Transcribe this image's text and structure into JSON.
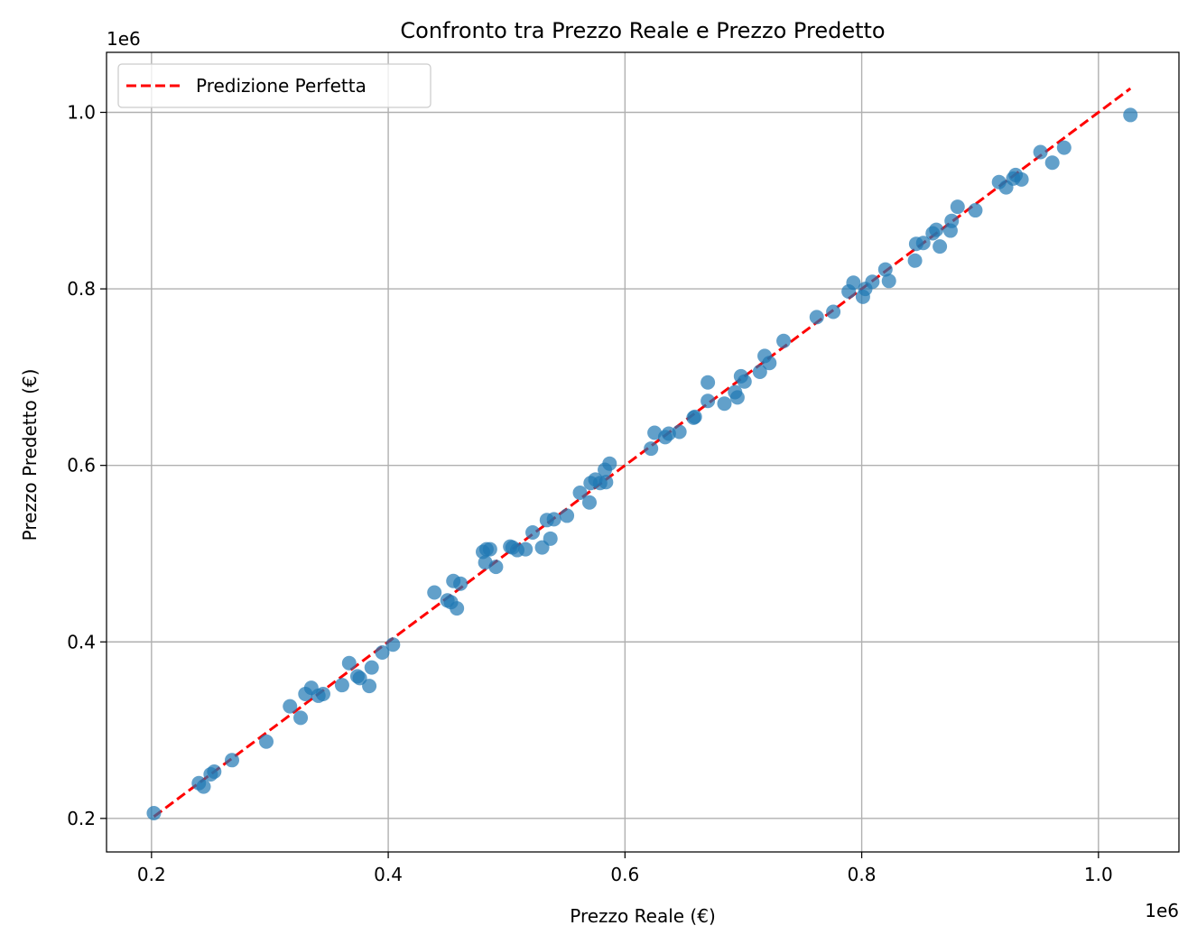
{
  "chart_data": {
    "type": "scatter",
    "title": "Confronto tra Prezzo Reale e Prezzo Predetto",
    "xlabel": "Prezzo Reale (€)",
    "ylabel": "Prezzo Predetto (€)",
    "x_offset_label": "1e6",
    "y_offset_label": "1e6",
    "xlim": [
      0.162,
      1.068
    ],
    "ylim": [
      0.162,
      1.068
    ],
    "x_ticks": [
      0.2,
      0.4,
      0.6,
      0.8,
      1.0
    ],
    "y_ticks": [
      0.2,
      0.4,
      0.6,
      0.8,
      1.0
    ],
    "x_tick_labels": [
      "0.2",
      "0.4",
      "0.6",
      "0.8",
      "1.0"
    ],
    "y_tick_labels": [
      "0.2",
      "0.4",
      "0.6",
      "0.8",
      "1.0"
    ],
    "grid": true,
    "legend_position": "top-left",
    "legend": [
      "Predizione Perfetta"
    ],
    "colors": {
      "points": "#1f77b4",
      "perfect_line": "#ff0000",
      "grid": "#b0b0b0"
    },
    "perfect_line": {
      "name": "Predizione Perfetta",
      "x": [
        0.202,
        1.027
      ],
      "y": [
        0.202,
        1.027
      ]
    },
    "series": [
      {
        "x": [
          0.202,
          0.24,
          0.244,
          0.25,
          0.253,
          0.268,
          0.297,
          0.317,
          0.326,
          0.33,
          0.335,
          0.341,
          0.345,
          0.361,
          0.367,
          0.374,
          0.376,
          0.384,
          0.386,
          0.395,
          0.404,
          0.439,
          0.45,
          0.453,
          0.455,
          0.458,
          0.461,
          0.48,
          0.482,
          0.483,
          0.486,
          0.491,
          0.503,
          0.505,
          0.509,
          0.516,
          0.522,
          0.53,
          0.534,
          0.537,
          0.54,
          0.551,
          0.562,
          0.57,
          0.571,
          0.575,
          0.579,
          0.583,
          0.584,
          0.587,
          0.622,
          0.625,
          0.634,
          0.637,
          0.646,
          0.658,
          0.659,
          0.67,
          0.67,
          0.684,
          0.693,
          0.695,
          0.698,
          0.701,
          0.714,
          0.718,
          0.722,
          0.734,
          0.762,
          0.776,
          0.789,
          0.793,
          0.801,
          0.803,
          0.809,
          0.82,
          0.823,
          0.845,
          0.846,
          0.852,
          0.86,
          0.863,
          0.866,
          0.875,
          0.876,
          0.881,
          0.896,
          0.916,
          0.922,
          0.928,
          0.93,
          0.935,
          0.951,
          0.961,
          0.971,
          1.027
        ],
        "values": [
          0.206,
          0.24,
          0.236,
          0.25,
          0.253,
          0.266,
          0.287,
          0.327,
          0.314,
          0.341,
          0.348,
          0.339,
          0.341,
          0.351,
          0.376,
          0.361,
          0.359,
          0.35,
          0.371,
          0.388,
          0.397,
          0.456,
          0.447,
          0.445,
          0.469,
          0.438,
          0.466,
          0.502,
          0.49,
          0.505,
          0.505,
          0.485,
          0.508,
          0.507,
          0.504,
          0.505,
          0.524,
          0.507,
          0.538,
          0.517,
          0.539,
          0.543,
          0.569,
          0.558,
          0.58,
          0.584,
          0.58,
          0.595,
          0.581,
          0.602,
          0.619,
          0.637,
          0.632,
          0.636,
          0.638,
          0.654,
          0.655,
          0.673,
          0.694,
          0.67,
          0.683,
          0.677,
          0.701,
          0.695,
          0.706,
          0.724,
          0.716,
          0.741,
          0.768,
          0.774,
          0.797,
          0.807,
          0.791,
          0.8,
          0.808,
          0.822,
          0.809,
          0.832,
          0.851,
          0.852,
          0.863,
          0.867,
          0.848,
          0.866,
          0.877,
          0.893,
          0.889,
          0.921,
          0.915,
          0.925,
          0.929,
          0.924,
          0.955,
          0.943,
          0.96,
          0.997
        ]
      }
    ]
  }
}
